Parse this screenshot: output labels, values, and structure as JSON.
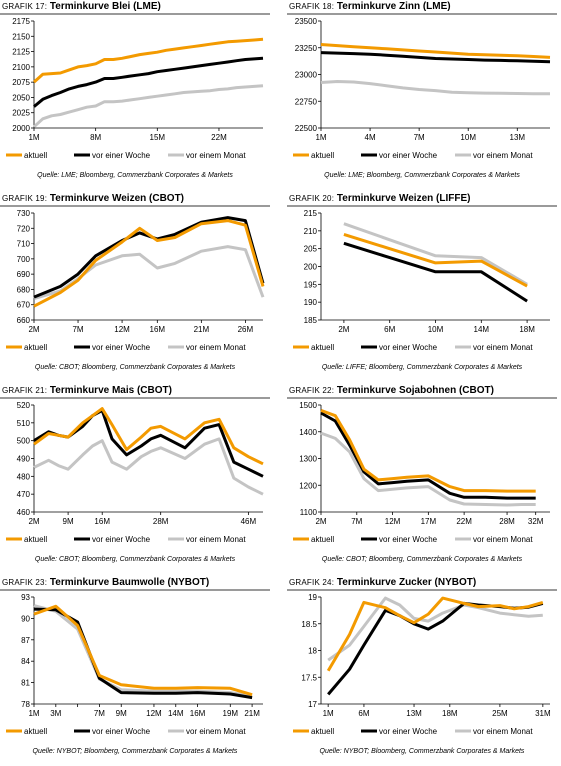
{
  "charts": [
    {
      "title_prefix": "Grafik 17:",
      "title": "Terminkurve Blei (LME)",
      "source": "Quelle: LME; Bloomberg, Commerzbank Corporates & Markets",
      "chart_data": {
        "type": "line",
        "x": [
          1,
          2,
          3,
          4,
          5,
          6,
          7,
          8,
          9,
          10,
          11,
          12,
          13,
          14,
          15,
          16,
          17,
          18,
          19,
          20,
          21,
          22,
          23,
          24,
          25,
          26,
          27
        ],
        "x_ticks": [
          1,
          8,
          15,
          22
        ],
        "x_tick_labels": [
          "1M",
          "8M",
          "15M",
          "22M"
        ],
        "xlim": [
          1,
          27
        ],
        "ylim": [
          2000,
          2175
        ],
        "y_ticks": [
          2000,
          2025,
          2050,
          2075,
          2100,
          2125,
          2150,
          2175
        ],
        "series": [
          {
            "name": "aktuell",
            "color": "#f39a00",
            "values": [
              2075,
              2088,
              2089,
              2090,
              2095,
              2100,
              2102,
              2105,
              2112,
              2112,
              2114,
              2117,
              2120,
              2122,
              2124,
              2127,
              2129,
              2131,
              2133,
              2135,
              2137,
              2139,
              2141,
              2142,
              2143,
              2144,
              2145
            ]
          },
          {
            "name": "vor einer Woche",
            "color": "#000000",
            "values": [
              2035,
              2047,
              2053,
              2058,
              2064,
              2068,
              2071,
              2075,
              2081,
              2081,
              2083,
              2085,
              2087,
              2089,
              2092,
              2094,
              2096,
              2098,
              2100,
              2102,
              2104,
              2106,
              2108,
              2110,
              2112,
              2113,
              2114
            ]
          },
          {
            "name": "vor einem Monat",
            "color": "#c4c4c4",
            "values": [
              2002,
              2015,
              2020,
              2022,
              2026,
              2030,
              2034,
              2036,
              2043,
              2043,
              2044,
              2046,
              2048,
              2050,
              2052,
              2054,
              2056,
              2058,
              2059,
              2060,
              2061,
              2063,
              2064,
              2066,
              2067,
              2068,
              2069
            ]
          }
        ]
      }
    },
    {
      "title_prefix": "Grafik 18:",
      "title": "Terminkurve Zinn (LME)",
      "source": "Quelle: LME; Bloomberg, Commerzbank Corporates & Markets",
      "chart_data": {
        "type": "line",
        "x": [
          1,
          2,
          3,
          4,
          5,
          6,
          7,
          8,
          9,
          10,
          11,
          12,
          13,
          14,
          15
        ],
        "x_ticks": [
          1,
          4,
          7,
          10,
          13
        ],
        "x_tick_labels": [
          "1M",
          "4M",
          "7M",
          "10M",
          "13M"
        ],
        "xlim": [
          1,
          15
        ],
        "ylim": [
          22500,
          23500
        ],
        "y_ticks": [
          22500,
          22750,
          23000,
          23250,
          23500
        ],
        "series": [
          {
            "name": "aktuell",
            "color": "#f39a00",
            "values": [
              23280,
              23270,
              23260,
              23250,
              23240,
              23230,
              23220,
              23210,
              23200,
              23190,
              23185,
              23180,
              23175,
              23168,
              23160
            ]
          },
          {
            "name": "vor einer Woche",
            "color": "#000000",
            "values": [
              23205,
              23200,
              23195,
              23190,
              23180,
              23170,
              23160,
              23150,
              23145,
              23140,
              23135,
              23132,
              23128,
              23124,
              23120
            ]
          },
          {
            "name": "vor einem Monat",
            "color": "#c4c4c4",
            "values": [
              22925,
              22935,
              22930,
              22915,
              22895,
              22875,
              22860,
              22850,
              22835,
              22830,
              22826,
              22824,
              22822,
              22820,
              22820
            ]
          }
        ]
      }
    },
    {
      "title_prefix": "Grafik 19:",
      "title": "Terminkurve Weizen (CBOT)",
      "source": "Quelle: CBOT; Bloomberg, Commerzbank Corporates & Markets",
      "chart_data": {
        "type": "line",
        "x": [
          2,
          5,
          7,
          9,
          12,
          14,
          16,
          18,
          21,
          24,
          26,
          28
        ],
        "x_ticks": [
          2,
          7,
          12,
          16,
          21,
          26
        ],
        "x_tick_labels": [
          "2M",
          "7M",
          "12M",
          "16M",
          "21M",
          "26M"
        ],
        "xlim": [
          2,
          28
        ],
        "ylim": [
          660,
          730
        ],
        "y_ticks": [
          660,
          670,
          680,
          690,
          700,
          710,
          720,
          730
        ],
        "series": [
          {
            "name": "aktuell",
            "color": "#f39a00",
            "values": [
              669,
              678,
              686,
              699,
              711,
              720,
              712,
              714,
              723,
              725,
              722,
              682
            ]
          },
          {
            "name": "vor einer Woche",
            "color": "#000000",
            "values": [
              675,
              682,
              690,
              702,
              712,
              717,
              713,
              716,
              724,
              727,
              725,
              684
            ]
          },
          {
            "name": "vor einem Monat",
            "color": "#c4c4c4",
            "values": [
              674,
              679,
              687,
              696,
              702,
              703,
              694,
              697,
              705,
              708,
              706,
              675
            ]
          }
        ]
      }
    },
    {
      "title_prefix": "Grafik 20:",
      "title": "Terminkurve Weizen (LIFFE)",
      "source": "Quelle: LIFFE; Bloomberg, Commerzbank Corporates & Markets",
      "chart_data": {
        "type": "line",
        "x": [
          2,
          6,
          10,
          14,
          18
        ],
        "x_ticks": [
          2,
          6,
          10,
          14,
          18
        ],
        "x_tick_labels": [
          "2M",
          "6M",
          "10M",
          "14M",
          "18M"
        ],
        "xlim": [
          0,
          20
        ],
        "ylim": [
          185,
          215
        ],
        "y_ticks": [
          185,
          190,
          195,
          200,
          205,
          210,
          215
        ],
        "series": [
          {
            "name": "aktuell",
            "color": "#f39a00",
            "values": [
              209,
              205,
              201,
              201.5,
              194.5
            ]
          },
          {
            "name": "vor einer Woche",
            "color": "#000000",
            "values": [
              206.5,
              202.5,
              198.5,
              198.5,
              190.3
            ]
          },
          {
            "name": "vor einem Monat",
            "color": "#c4c4c4",
            "values": [
              212,
              207.5,
              203,
              202.5,
              195
            ]
          }
        ]
      }
    },
    {
      "title_prefix": "Grafik 21:",
      "title": "Terminkurve Mais (CBOT)",
      "source": "Quelle: CBOT; Bloomberg, Commerzbank Corporates & Markets",
      "chart_data": {
        "type": "line",
        "x": [
          2,
          5,
          7,
          9,
          12,
          14,
          16,
          18,
          21,
          24,
          26,
          28,
          33,
          37,
          40,
          43,
          46,
          49
        ],
        "x_ticks": [
          2,
          9,
          16,
          28,
          46
        ],
        "x_tick_labels": [
          "2M",
          "9M",
          "16M",
          "28M",
          "46M"
        ],
        "xlim": [
          2,
          49
        ],
        "ylim": [
          460,
          520
        ],
        "y_ticks": [
          460,
          470,
          480,
          490,
          500,
          510,
          520
        ],
        "series": [
          {
            "name": "aktuell",
            "color": "#f39a00",
            "values": [
              498,
              504,
              503,
              502,
              510,
              514,
              518,
              509,
              495,
              502,
              507,
              508,
              501,
              510,
              512,
              496,
              491,
              487
            ]
          },
          {
            "name": "vor einer Woche",
            "color": "#000000",
            "values": [
              500,
              505,
              503,
              502,
              508,
              514,
              517,
              501,
              492,
              497,
              501,
              503,
              496,
              507,
              509,
              488,
              484,
              480
            ]
          },
          {
            "name": "vor einem Monat",
            "color": "#c4c4c4",
            "values": [
              485,
              489,
              486,
              484,
              492,
              497,
              500,
              488,
              484,
              491,
              494,
              496,
              490,
              498,
              501,
              479,
              474,
              470
            ]
          }
        ]
      }
    },
    {
      "title_prefix": "Grafik 22:",
      "title": "Terminkurve Sojabohnen (CBOT)",
      "source": "Quelle: CBOT; Bloomberg, Commerzbank Corporates & Markets",
      "chart_data": {
        "type": "line",
        "x": [
          2,
          4,
          6,
          8,
          10,
          12,
          14,
          17,
          20,
          22,
          25,
          28,
          30,
          32
        ],
        "x_ticks": [
          2,
          7,
          12,
          17,
          22,
          28,
          32
        ],
        "x_tick_labels": [
          "2M",
          "7M",
          "12M",
          "17M",
          "22M",
          "28M",
          "32M"
        ],
        "xlim": [
          2,
          34
        ],
        "ylim": [
          1100,
          1500
        ],
        "y_ticks": [
          1100,
          1200,
          1300,
          1400,
          1500
        ],
        "series": [
          {
            "name": "aktuell",
            "color": "#f39a00",
            "values": [
              1480,
              1460,
              1370,
              1260,
              1220,
              1225,
              1230,
              1235,
              1195,
              1180,
              1180,
              1178,
              1178,
              1178
            ]
          },
          {
            "name": "vor einer Woche",
            "color": "#000000",
            "values": [
              1470,
              1440,
              1350,
              1250,
              1205,
              1210,
              1215,
              1220,
              1170,
              1155,
              1155,
              1152,
              1152,
              1152
            ]
          },
          {
            "name": "vor einem Monat",
            "color": "#c4c4c4",
            "values": [
              1395,
              1375,
              1325,
              1225,
              1180,
              1185,
              1190,
              1195,
              1145,
              1130,
              1128,
              1126,
              1128,
              1128
            ]
          }
        ]
      }
    },
    {
      "title_prefix": "Grafik 23:",
      "title": "Terminkurve Baumwolle (NYBOT)",
      "source": "Quelle: NYBOT; Bloomberg, Commerzbank Corporates & Markets",
      "chart_data": {
        "type": "line",
        "x": [
          1,
          3,
          5,
          7,
          9,
          12,
          14,
          16,
          19,
          21
        ],
        "x_ticks": [
          1,
          3,
          5,
          7,
          9,
          12,
          14,
          16,
          19,
          21
        ],
        "x_tick_labels": [
          "1M",
          "3M",
          "",
          "7M",
          "9M",
          "12M",
          "14M",
          "16M",
          "19M",
          "21M"
        ],
        "xlim": [
          1,
          22
        ],
        "ylim": [
          78,
          93
        ],
        "y_ticks": [
          78,
          81,
          84,
          87,
          90,
          93
        ],
        "series": [
          {
            "name": "aktuell",
            "color": "#f39a00",
            "values": [
              90.6,
              91.7,
              89,
              82,
              80.7,
              80.2,
              80.2,
              80.3,
              80.2,
              79.3
            ]
          },
          {
            "name": "vor einer Woche",
            "color": "#000000",
            "values": [
              91.3,
              91.2,
              89.5,
              81.6,
              79.6,
              79.5,
              79.5,
              79.6,
              79.4,
              78.9
            ]
          },
          {
            "name": "vor einem Monat",
            "color": "#c4c4c4",
            "values": [
              91.8,
              91,
              88.5,
              81.5,
              80,
              79.8,
              79.8,
              79.8,
              79.6,
              79.1
            ]
          }
        ]
      }
    },
    {
      "title_prefix": "Grafik 24:",
      "title": "Terminkurve Zucker (NYBOT)",
      "source": "Quelle: NYBOT; Bloomberg, Commerzbank Corporates & Markets",
      "chart_data": {
        "type": "line",
        "x": [
          1,
          4,
          6,
          9,
          11,
          13,
          15,
          17,
          20,
          22,
          25,
          27,
          29,
          31
        ],
        "x_ticks": [
          1,
          6,
          13,
          18,
          25,
          31
        ],
        "x_tick_labels": [
          "1M",
          "6M",
          "13M",
          "18M",
          "25M",
          "31M"
        ],
        "xlim": [
          0,
          32
        ],
        "ylim": [
          17.0,
          19.0
        ],
        "y_ticks": [
          17.0,
          17.5,
          18.0,
          18.5,
          19.0
        ],
        "series": [
          {
            "name": "aktuell",
            "color": "#f39a00",
            "values": [
              17.62,
              18.3,
              18.9,
              18.8,
              18.65,
              18.52,
              18.68,
              18.98,
              18.88,
              18.82,
              18.84,
              18.78,
              18.82,
              18.9
            ]
          },
          {
            "name": "vor einer Woche",
            "color": "#000000",
            "values": [
              17.18,
              17.65,
              18.1,
              18.75,
              18.65,
              18.5,
              18.4,
              18.55,
              18.88,
              18.85,
              18.82,
              18.79,
              18.81,
              18.88
            ]
          },
          {
            "name": "vor einem Monat",
            "color": "#c4c4c4",
            "values": [
              17.82,
              18.1,
              18.45,
              18.98,
              18.85,
              18.6,
              18.55,
              18.7,
              18.85,
              18.8,
              18.7,
              18.67,
              18.64,
              18.66
            ]
          }
        ]
      }
    }
  ]
}
